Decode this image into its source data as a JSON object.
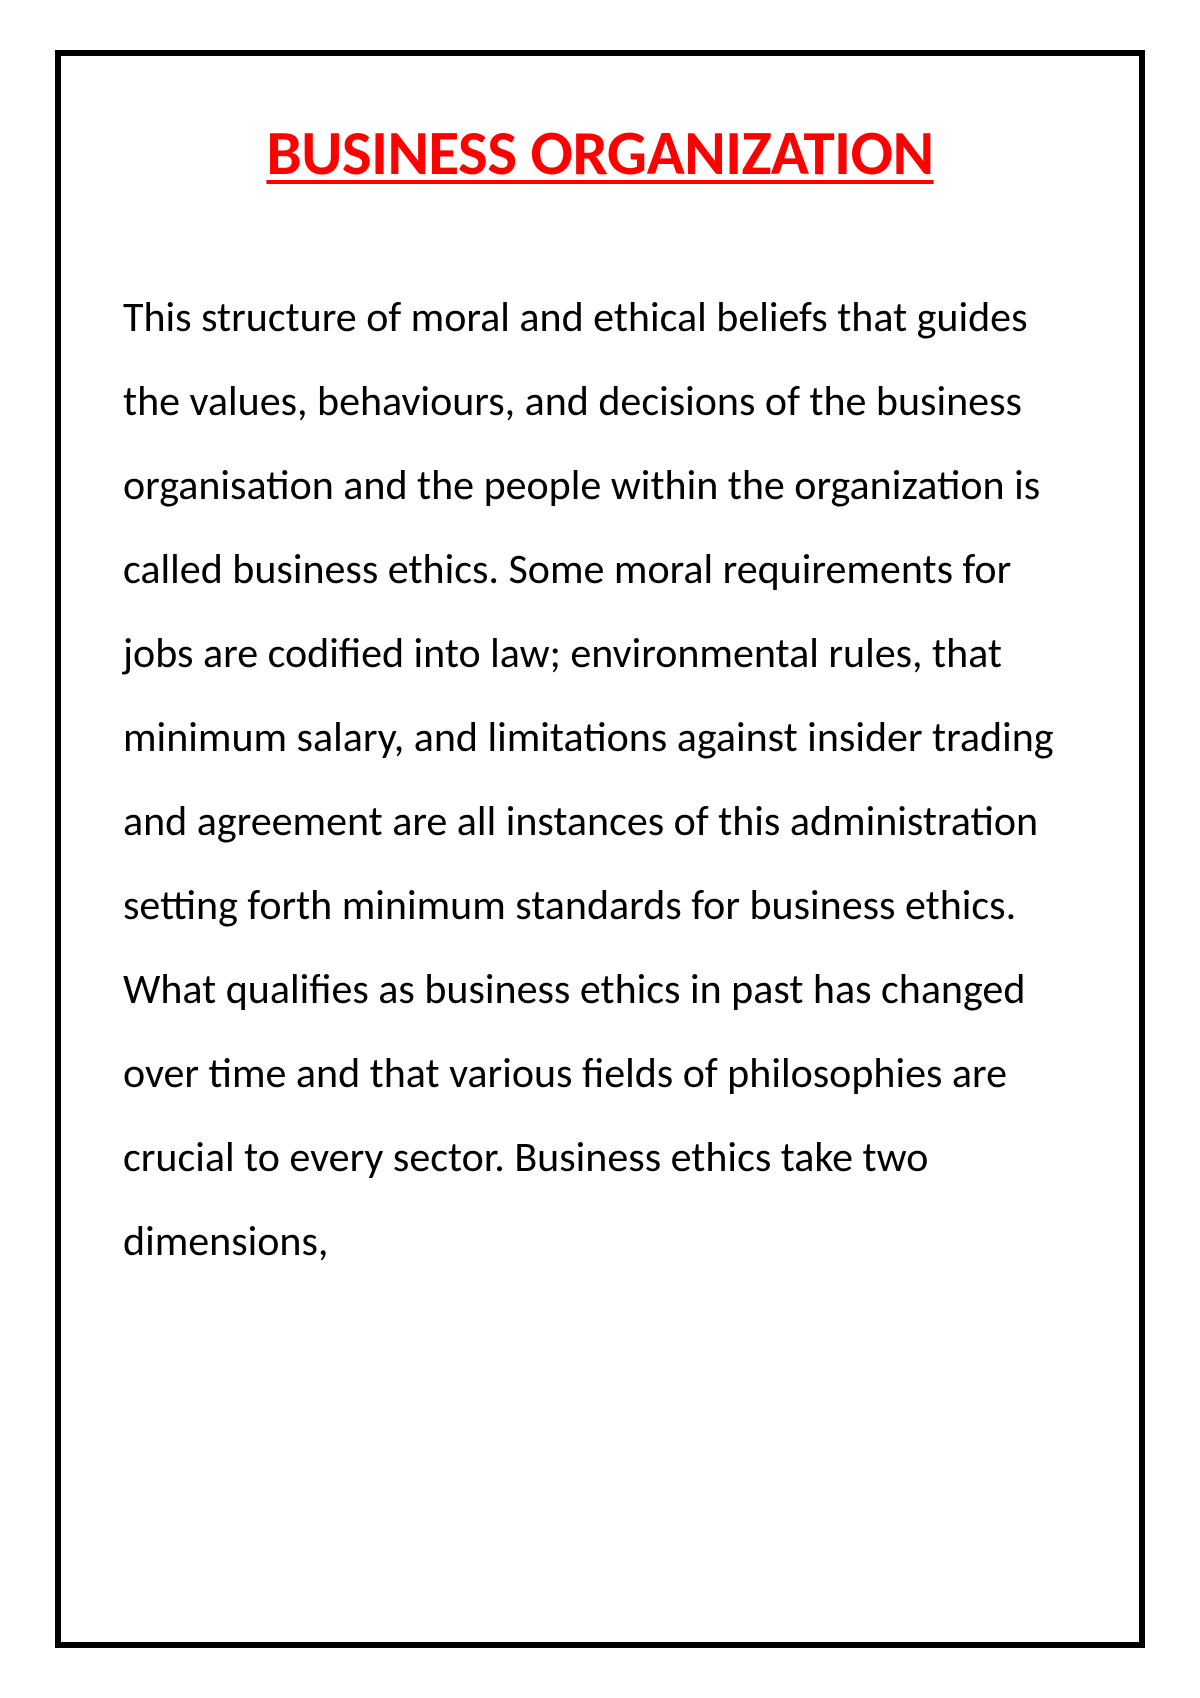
{
  "document": {
    "title": "BUSINESS ORGANIZATION",
    "body": "This structure of moral and ethical beliefs that guides the values, behaviours, and decisions of the business organisation and the people within the organization is called business ethics. Some moral requirements for jobs are codified into law; environmental rules, that minimum salary, and limitations against insider trading and agreement are all instances of this administration setting forth minimum standards for business ethics. What qualifies as business ethics in past has changed over time and that various fields of philosophies are crucial to every sector. Business ethics take two dimensions,",
    "title_color": "#ff0000",
    "body_color": "#000000",
    "border_color": "#000000",
    "background_color": "#ffffff",
    "title_fontsize": 63,
    "body_fontsize": 42,
    "border_width": 6
  }
}
